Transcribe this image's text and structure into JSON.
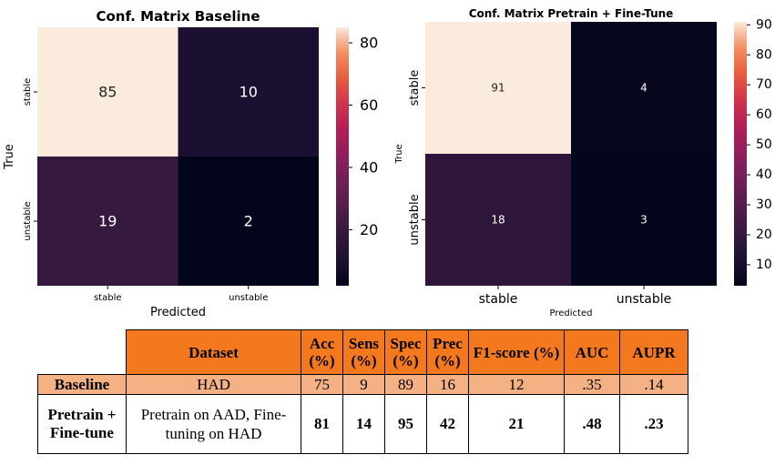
{
  "chart_data": [
    {
      "type": "heatmap",
      "title": "Conf. Matrix Baseline",
      "xlabel": "Predicted",
      "ylabel": "True",
      "x_categories": [
        "stable",
        "unstable"
      ],
      "y_categories": [
        "stable",
        "unstable"
      ],
      "values": [
        [
          85,
          10
        ],
        [
          19,
          2
        ]
      ],
      "colorbar_ticks": [
        20,
        40,
        60,
        80
      ],
      "color_range": [
        2,
        85
      ],
      "colormap": "rocket"
    },
    {
      "type": "heatmap",
      "title": "Conf. Matrix Pretrain + Fine-Tune",
      "xlabel": "Predicted",
      "ylabel": "True",
      "x_categories": [
        "stable",
        "unstable"
      ],
      "y_categories": [
        "stable",
        "unstable"
      ],
      "values": [
        [
          91,
          4
        ],
        [
          18,
          3
        ]
      ],
      "colorbar_ticks": [
        10,
        20,
        30,
        40,
        50,
        60,
        70,
        80,
        90
      ],
      "color_range": [
        3,
        91
      ],
      "colormap": "rocket"
    }
  ],
  "table": {
    "headers": [
      "Dataset",
      "Acc (%)",
      "Sens (%)",
      "Spec (%)",
      "Prec (%)",
      "F1-score (%)",
      "AUC",
      "AUPR"
    ],
    "rows": [
      {
        "label": "Baseline",
        "dataset": "HAD",
        "values": [
          "75",
          "9",
          "89",
          "16",
          "12",
          ".35",
          ".14"
        ]
      },
      {
        "label": "Pretrain + Fine-tune",
        "dataset": "Pretrain on AAD, Fine-tuning on HAD",
        "values": [
          "81",
          "14",
          "95",
          "42",
          "21",
          ".48",
          ".23"
        ]
      }
    ],
    "header_color": "#f4781e",
    "baseline_row_color": "#f4b183"
  }
}
